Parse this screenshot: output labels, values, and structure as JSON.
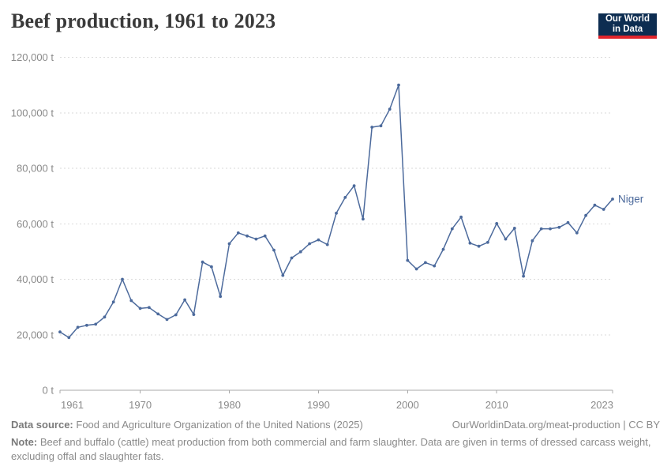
{
  "header": {
    "title": "Beef production, 1961 to 2023",
    "logo": {
      "line1": "Our World",
      "line2": "in Data"
    }
  },
  "chart_data": {
    "type": "line",
    "title": "Beef production, 1961 to 2023",
    "xlabel": "",
    "ylabel": "",
    "y_unit": " t",
    "xlim": [
      1961,
      2023
    ],
    "ylim": [
      0,
      120000
    ],
    "x_ticks": [
      1961,
      1970,
      1980,
      1990,
      2000,
      2010,
      2023
    ],
    "y_ticks": [
      0,
      20000,
      40000,
      60000,
      80000,
      100000,
      120000
    ],
    "grid": "horizontal-dashed",
    "legend_position": "end-of-line-label",
    "axis_color": "#a8a8a8",
    "grid_color": "#dadada",
    "tick_label_color": "#8a8a8a",
    "series": [
      {
        "name": "Niger",
        "color": "#4c6a9c",
        "years": [
          1961,
          1962,
          1963,
          1964,
          1965,
          1966,
          1967,
          1968,
          1969,
          1970,
          1971,
          1972,
          1973,
          1974,
          1975,
          1976,
          1977,
          1978,
          1979,
          1980,
          1981,
          1982,
          1983,
          1984,
          1985,
          1986,
          1987,
          1988,
          1989,
          1990,
          1991,
          1992,
          1993,
          1994,
          1995,
          1996,
          1997,
          1998,
          1999,
          2000,
          2001,
          2002,
          2003,
          2004,
          2005,
          2006,
          2007,
          2008,
          2009,
          2010,
          2011,
          2012,
          2013,
          2014,
          2015,
          2016,
          2017,
          2018,
          2019,
          2020,
          2021,
          2022,
          2023
        ],
        "values": [
          21000,
          19000,
          22700,
          23400,
          23800,
          26400,
          31800,
          40000,
          32300,
          29500,
          29800,
          27500,
          25500,
          27200,
          32600,
          27300,
          46200,
          44500,
          33800,
          52800,
          56700,
          55600,
          54500,
          55600,
          50500,
          41400,
          47700,
          49900,
          52800,
          54200,
          52500,
          63800,
          69500,
          73700,
          61700,
          94800,
          95300,
          101300,
          110000,
          46800,
          43700,
          46000,
          44800,
          50800,
          58200,
          62400,
          53000,
          51900,
          53300,
          60100,
          54500,
          58400,
          41100,
          53900,
          58200,
          58200,
          58700,
          60400,
          56700,
          63000,
          66700,
          65200,
          68900
        ]
      }
    ]
  },
  "footer": {
    "source_label": "Data source:",
    "source_text": "Food and Agriculture Organization of the United Nations (2025)",
    "link_text": "OurWorldinData.org/meat-production | CC BY",
    "note_label": "Note:",
    "note_text": "Beef and buffalo (cattle) meat production from both commercial and farm slaughter. Data are given in terms of dressed carcass weight, excluding offal and slaughter fats."
  }
}
